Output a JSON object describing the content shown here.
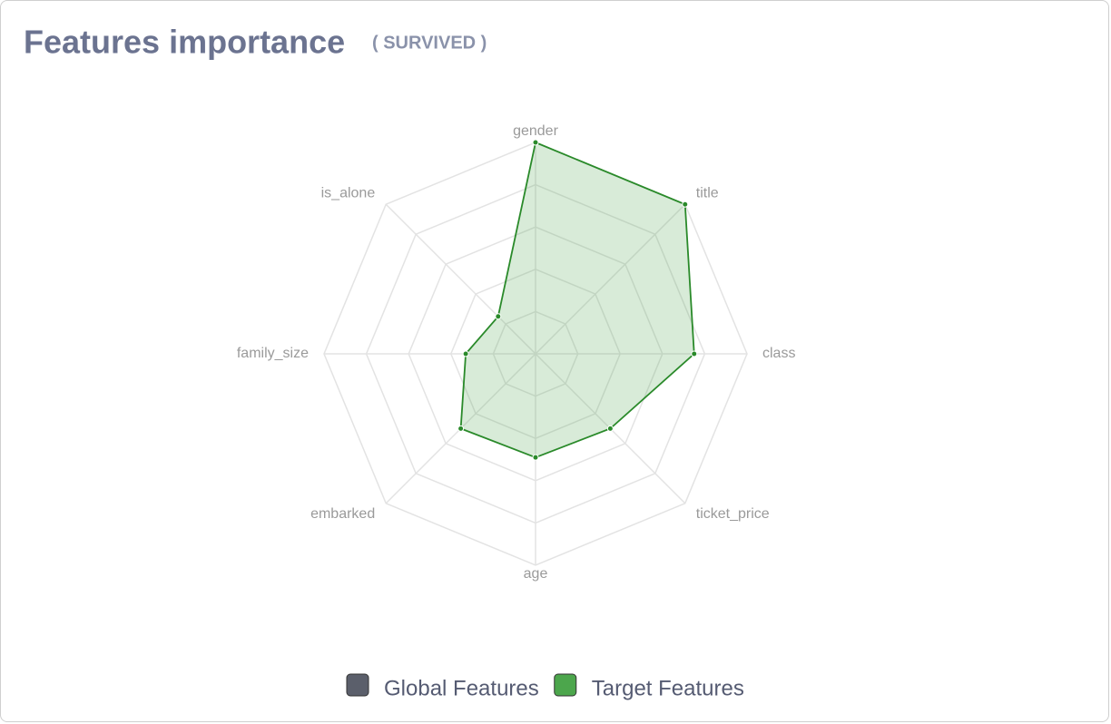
{
  "chart_data": {
    "type": "radar",
    "title": "Features importance",
    "subtitle": "( SURVIVED )",
    "categories": [
      "gender",
      "title",
      "class",
      "ticket_price",
      "age",
      "embarked",
      "family_size",
      "is_alone"
    ],
    "series": [
      {
        "name": "Global Features",
        "color": "#5b5f6b",
        "values": [
          null,
          null,
          null,
          null,
          null,
          null,
          null,
          null
        ]
      },
      {
        "name": "Target Features",
        "color": "#4ca64c",
        "values": [
          1.0,
          1.0,
          0.75,
          0.5,
          0.49,
          0.5,
          0.33,
          0.25
        ]
      }
    ],
    "rlim": [
      0,
      1
    ],
    "rticks": [
      0.2,
      0.4,
      0.6,
      0.8,
      1.0
    ],
    "grid": true,
    "legend": "bottom"
  }
}
